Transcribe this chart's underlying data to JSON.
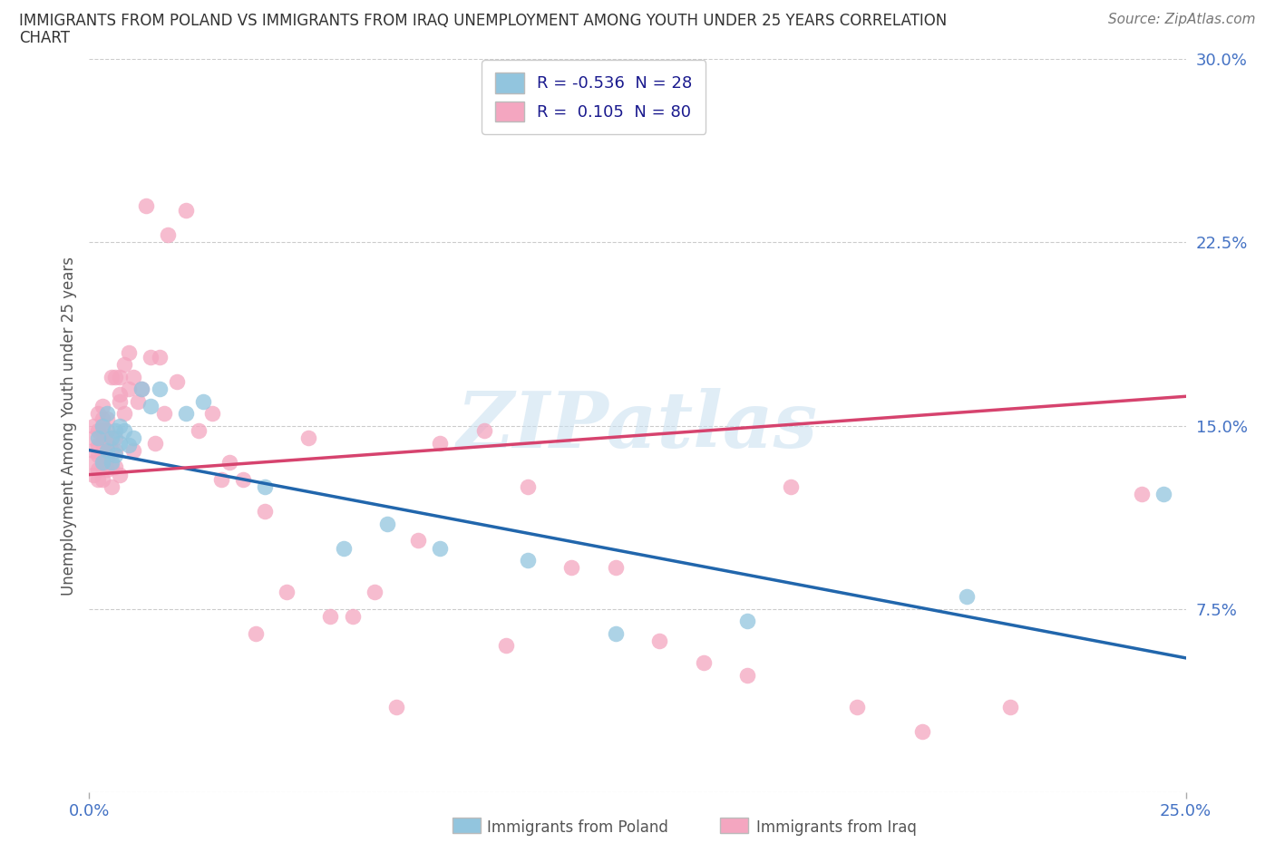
{
  "title_line1": "IMMIGRANTS FROM POLAND VS IMMIGRANTS FROM IRAQ UNEMPLOYMENT AMONG YOUTH UNDER 25 YEARS CORRELATION",
  "title_line2": "CHART",
  "source": "Source: ZipAtlas.com",
  "ylabel": "Unemployment Among Youth under 25 years",
  "xlabel_poland": "Immigrants from Poland",
  "xlabel_iraq": "Immigrants from Iraq",
  "watermark": "ZIPatlas",
  "legend_poland_label": "R = -0.536  N = 28",
  "legend_iraq_label": "R =  0.105  N = 80",
  "color_poland": "#92c5de",
  "color_iraq": "#f4a6c0",
  "line_color_poland": "#2166ac",
  "line_color_iraq": "#d6436e",
  "xlim": [
    0.0,
    0.25
  ],
  "ylim": [
    0.0,
    0.3
  ],
  "yticks": [
    0.0,
    0.075,
    0.15,
    0.225,
    0.3
  ],
  "ytick_labels": [
    "",
    "7.5%",
    "15.0%",
    "22.5%",
    "30.0%"
  ],
  "poland_x": [
    0.002,
    0.003,
    0.003,
    0.004,
    0.004,
    0.005,
    0.005,
    0.006,
    0.006,
    0.007,
    0.007,
    0.008,
    0.009,
    0.01,
    0.012,
    0.014,
    0.016,
    0.022,
    0.026,
    0.04,
    0.058,
    0.068,
    0.08,
    0.1,
    0.12,
    0.15,
    0.2,
    0.245
  ],
  "poland_y": [
    0.145,
    0.15,
    0.135,
    0.14,
    0.155,
    0.145,
    0.135,
    0.148,
    0.138,
    0.15,
    0.143,
    0.148,
    0.142,
    0.145,
    0.165,
    0.158,
    0.165,
    0.155,
    0.16,
    0.125,
    0.1,
    0.11,
    0.1,
    0.095,
    0.065,
    0.07,
    0.08,
    0.122
  ],
  "iraq_x": [
    0.001,
    0.001,
    0.001,
    0.001,
    0.001,
    0.002,
    0.002,
    0.002,
    0.002,
    0.002,
    0.002,
    0.003,
    0.003,
    0.003,
    0.003,
    0.003,
    0.003,
    0.003,
    0.004,
    0.004,
    0.004,
    0.004,
    0.004,
    0.005,
    0.005,
    0.005,
    0.005,
    0.005,
    0.006,
    0.006,
    0.006,
    0.006,
    0.007,
    0.007,
    0.007,
    0.007,
    0.008,
    0.008,
    0.009,
    0.009,
    0.01,
    0.01,
    0.011,
    0.012,
    0.013,
    0.014,
    0.015,
    0.016,
    0.017,
    0.018,
    0.02,
    0.022,
    0.025,
    0.028,
    0.03,
    0.032,
    0.035,
    0.038,
    0.04,
    0.045,
    0.05,
    0.055,
    0.06,
    0.065,
    0.07,
    0.075,
    0.08,
    0.09,
    0.095,
    0.1,
    0.11,
    0.12,
    0.13,
    0.14,
    0.15,
    0.16,
    0.175,
    0.19,
    0.21,
    0.24
  ],
  "iraq_y": [
    0.13,
    0.135,
    0.14,
    0.145,
    0.15,
    0.128,
    0.132,
    0.138,
    0.142,
    0.148,
    0.155,
    0.128,
    0.133,
    0.138,
    0.143,
    0.148,
    0.153,
    0.158,
    0.132,
    0.137,
    0.143,
    0.148,
    0.153,
    0.125,
    0.133,
    0.14,
    0.145,
    0.17,
    0.133,
    0.14,
    0.145,
    0.17,
    0.163,
    0.17,
    0.13,
    0.16,
    0.155,
    0.175,
    0.165,
    0.18,
    0.14,
    0.17,
    0.16,
    0.165,
    0.24,
    0.178,
    0.143,
    0.178,
    0.155,
    0.228,
    0.168,
    0.238,
    0.148,
    0.155,
    0.128,
    0.135,
    0.128,
    0.065,
    0.115,
    0.082,
    0.145,
    0.072,
    0.072,
    0.082,
    0.035,
    0.103,
    0.143,
    0.148,
    0.06,
    0.125,
    0.092,
    0.092,
    0.062,
    0.053,
    0.048,
    0.125,
    0.035,
    0.025,
    0.035,
    0.122
  ]
}
